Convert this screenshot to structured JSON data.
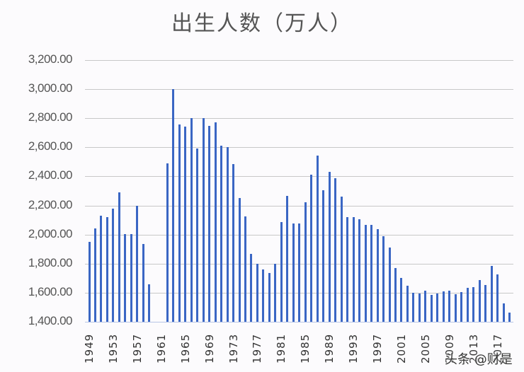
{
  "chart_data": {
    "type": "bar",
    "title": "出生人数（万人）",
    "xlabel": "",
    "ylabel": "",
    "ylim": [
      1400,
      3200
    ],
    "grid": true,
    "legend": null,
    "yticks": [
      "1,400.00",
      "1,600.00",
      "1,800.00",
      "2,000.00",
      "2,200.00",
      "2,400.00",
      "2,600.00",
      "2,800.00",
      "3,000.00",
      "3,200.00"
    ],
    "xtick_labels": [
      "1949",
      "1953",
      "1957",
      "1961",
      "1965",
      "1969",
      "1973",
      "1977",
      "1981",
      "1985",
      "1989",
      "1993",
      "1997",
      "2001",
      "2005",
      "2009",
      "2013",
      "2017"
    ],
    "categories": [
      "1949",
      "1950",
      "1951",
      "1952",
      "1953",
      "1954",
      "1955",
      "1956",
      "1957",
      "1958",
      "1959",
      "1960",
      "1961",
      "1962",
      "1963",
      "1964",
      "1965",
      "1966",
      "1967",
      "1968",
      "1969",
      "1970",
      "1971",
      "1972",
      "1973",
      "1974",
      "1975",
      "1976",
      "1977",
      "1978",
      "1979",
      "1980",
      "1981",
      "1982",
      "1983",
      "1984",
      "1985",
      "1986",
      "1987",
      "1988",
      "1989",
      "1990",
      "1991",
      "1992",
      "1993",
      "1994",
      "1995",
      "1996",
      "1997",
      "1998",
      "1999",
      "2000",
      "2001",
      "2002",
      "2003",
      "2004",
      "2005",
      "2006",
      "2007",
      "2008",
      "2009",
      "2010",
      "2011",
      "2012",
      "2013",
      "2014",
      "2015",
      "2016",
      "2017",
      "2018",
      "2019"
    ],
    "values": [
      1950,
      2042,
      2128,
      2120,
      2180,
      2289,
      2005,
      2005,
      2200,
      1935,
      1660,
      null,
      null,
      2489,
      3000,
      2759,
      2745,
      2800,
      2590,
      2800,
      2750,
      2770,
      2610,
      2600,
      2485,
      2250,
      2125,
      1865,
      1800,
      1760,
      1735,
      1800,
      2085,
      2265,
      2075,
      2075,
      2220,
      2410,
      2545,
      2305,
      2430,
      2390,
      2260,
      2120,
      2120,
      2105,
      2065,
      2065,
      2035,
      1990,
      1910,
      1770,
      1700,
      1650,
      1600,
      1595,
      1615,
      1585,
      1595,
      1610,
      1615,
      1590,
      1605,
      1635,
      1640,
      1685,
      1655,
      1785,
      1725,
      1525,
      1465
    ]
  },
  "title": "出生人数（万人）",
  "watermark": "头条 @财是",
  "colors": {
    "bar": "#3a66c4",
    "grid": "#c8c8c8",
    "text": "#555555",
    "background": "#fcfbfd"
  }
}
